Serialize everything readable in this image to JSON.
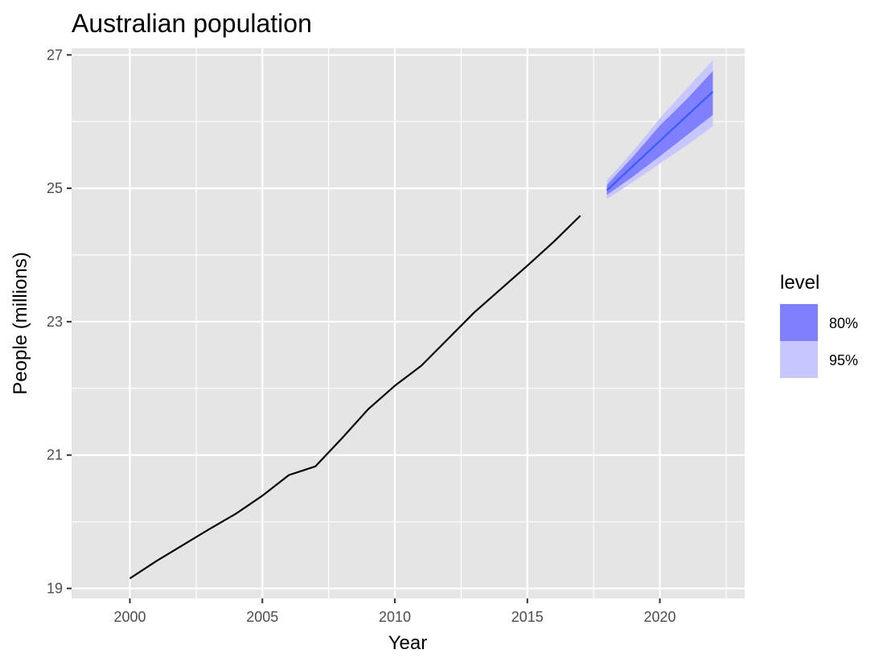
{
  "chart_data": {
    "type": "line",
    "title": "Australian population",
    "xlabel": "Year",
    "ylabel": "People (millions)",
    "xlim": [
      1997.8,
      2023.2
    ],
    "ylim": [
      18.85,
      27.1
    ],
    "x_ticks": [
      2000,
      2005,
      2010,
      2015,
      2020
    ],
    "y_ticks": [
      19,
      21,
      23,
      25,
      27
    ],
    "grid": true,
    "legend": {
      "title": "level",
      "position": "right",
      "entries": [
        {
          "label": "80%",
          "color": "#8080ff"
        },
        {
          "label": "95%",
          "color": "#c8c6ff"
        }
      ]
    },
    "series": [
      {
        "x": [
          2000,
          2001,
          2002,
          2003,
          2004,
          2005,
          2006,
          2007,
          2008,
          2009,
          2010,
          2011,
          2012,
          2013,
          2014,
          2015,
          2016,
          2017
        ],
        "values": [
          19.15,
          19.41,
          19.65,
          19.89,
          20.12,
          20.39,
          20.7,
          20.83,
          21.25,
          21.69,
          22.04,
          22.34,
          22.74,
          23.14,
          23.49,
          23.84,
          24.2,
          24.59
        ],
        "color": "#000000"
      }
    ],
    "forecast": {
      "x": [
        2018,
        2019,
        2020,
        2021,
        2022
      ],
      "mean": [
        24.97,
        25.34,
        25.71,
        26.08,
        26.45
      ],
      "lo80": [
        24.9,
        25.18,
        25.48,
        25.79,
        26.1
      ],
      "hi80": [
        25.05,
        25.48,
        25.94,
        26.33,
        26.76
      ],
      "lo95": [
        24.84,
        25.1,
        25.37,
        25.64,
        25.93
      ],
      "hi95": [
        25.12,
        25.56,
        26.05,
        26.49,
        26.92
      ],
      "line_color": "#3a5bff"
    },
    "colors": {
      "panel_background": "#e5e5e5",
      "grid_major": "#ffffff",
      "band80": "#8080ff",
      "band95": "#c8c6ff"
    }
  }
}
